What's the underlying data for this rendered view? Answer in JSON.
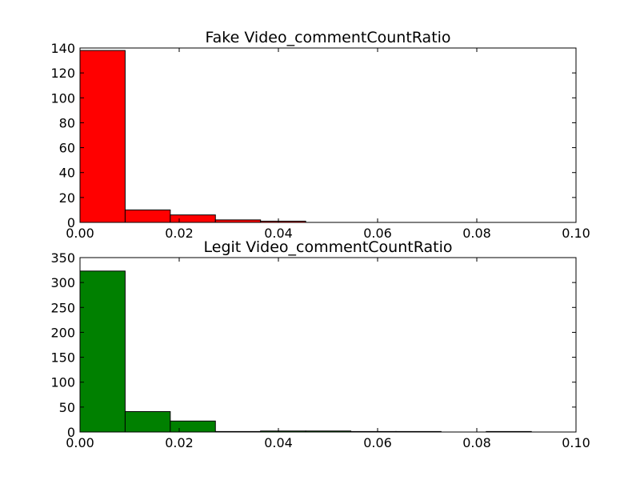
{
  "chart_data": [
    {
      "type": "bar",
      "title": "Fake Video_commentCountRatio",
      "xlabel": "",
      "ylabel": "",
      "xlim": [
        0.0,
        0.1
      ],
      "ylim": [
        0,
        140
      ],
      "xticks": [
        "0.00",
        "0.02",
        "0.04",
        "0.06",
        "0.08",
        "0.10"
      ],
      "yticks": [
        "0",
        "20",
        "40",
        "60",
        "80",
        "100",
        "120",
        "140"
      ],
      "grid": false,
      "color": "#ff0000",
      "bins": [
        {
          "x0": 0.0,
          "x1": 0.0091,
          "value": 138
        },
        {
          "x0": 0.0091,
          "x1": 0.0182,
          "value": 10
        },
        {
          "x0": 0.0182,
          "x1": 0.0273,
          "value": 6
        },
        {
          "x0": 0.0273,
          "x1": 0.0364,
          "value": 2
        },
        {
          "x0": 0.0364,
          "x1": 0.0455,
          "value": 1
        },
        {
          "x0": 0.0455,
          "x1": 0.0546,
          "value": 0
        },
        {
          "x0": 0.0546,
          "x1": 0.0637,
          "value": 0
        },
        {
          "x0": 0.0637,
          "x1": 0.0728,
          "value": 0
        },
        {
          "x0": 0.0728,
          "x1": 0.0819,
          "value": 0
        },
        {
          "x0": 0.0819,
          "x1": 0.091,
          "value": 0
        }
      ]
    },
    {
      "type": "bar",
      "title": "Legit Video_commentCountRatio",
      "xlabel": "",
      "ylabel": "",
      "xlim": [
        0.0,
        0.1
      ],
      "ylim": [
        0,
        350
      ],
      "xticks": [
        "0.00",
        "0.02",
        "0.04",
        "0.06",
        "0.08",
        "0.10"
      ],
      "yticks": [
        "0",
        "50",
        "100",
        "150",
        "200",
        "250",
        "300",
        "350"
      ],
      "grid": false,
      "color": "#008000",
      "bins": [
        {
          "x0": 0.0,
          "x1": 0.0091,
          "value": 323
        },
        {
          "x0": 0.0091,
          "x1": 0.0182,
          "value": 41
        },
        {
          "x0": 0.0182,
          "x1": 0.0273,
          "value": 22
        },
        {
          "x0": 0.0273,
          "x1": 0.0364,
          "value": 1
        },
        {
          "x0": 0.0364,
          "x1": 0.0455,
          "value": 2
        },
        {
          "x0": 0.0455,
          "x1": 0.0546,
          "value": 2
        },
        {
          "x0": 0.0546,
          "x1": 0.0637,
          "value": 1
        },
        {
          "x0": 0.0637,
          "x1": 0.0728,
          "value": 1
        },
        {
          "x0": 0.0728,
          "x1": 0.0819,
          "value": 0
        },
        {
          "x0": 0.0819,
          "x1": 0.091,
          "value": 1
        }
      ]
    }
  ]
}
